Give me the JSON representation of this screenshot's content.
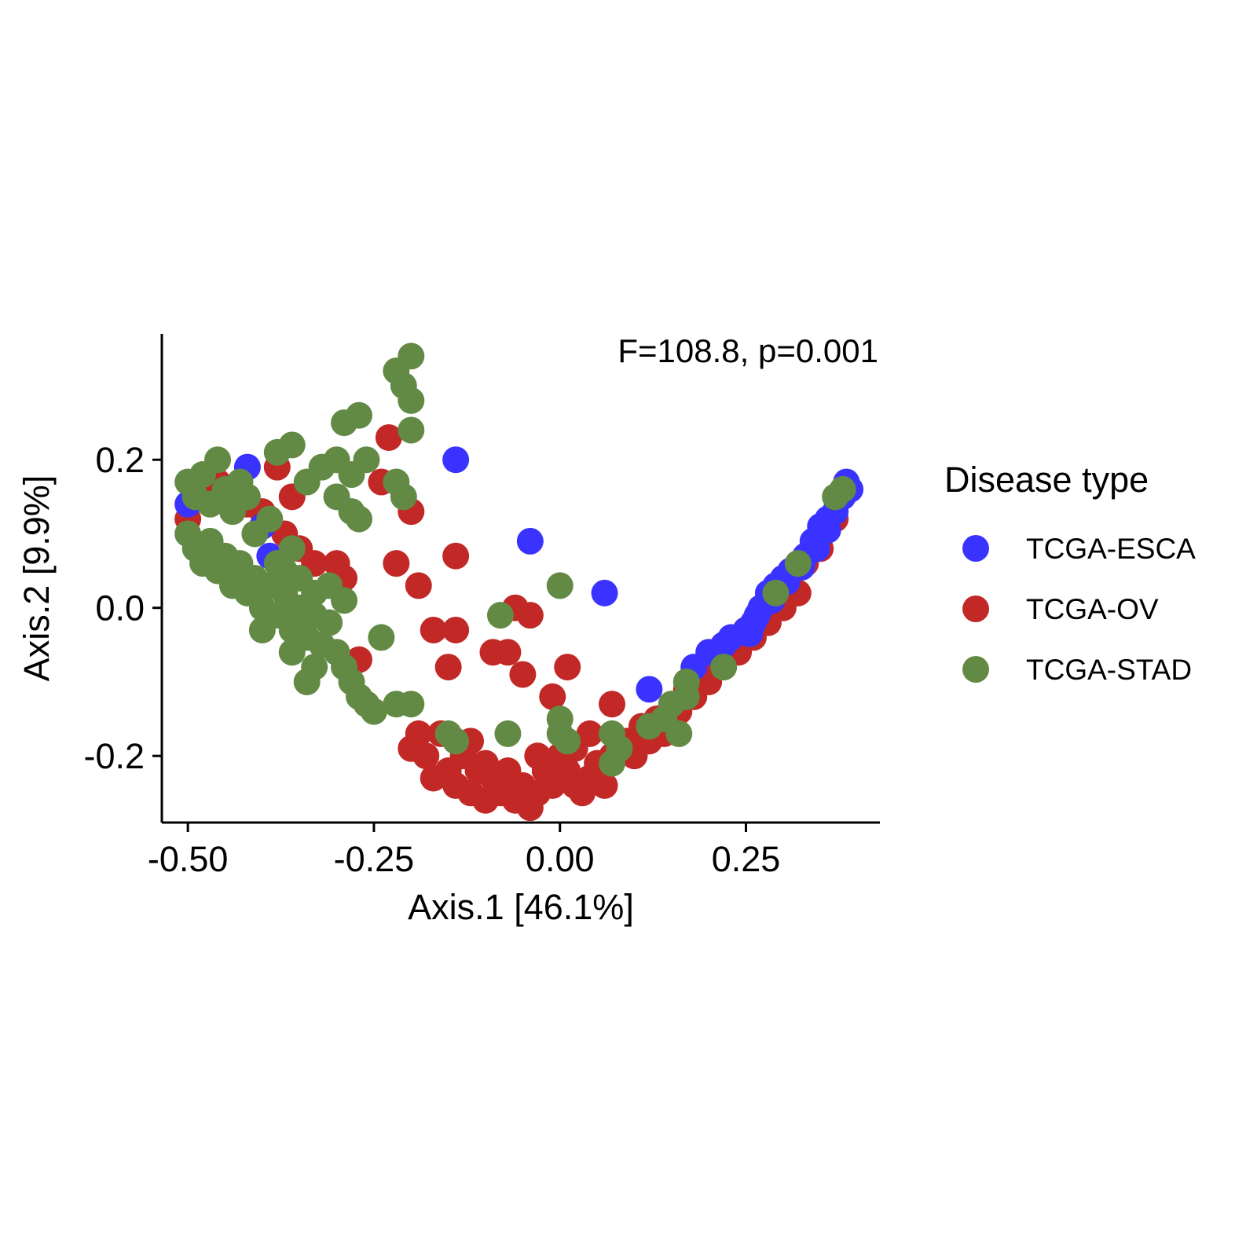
{
  "chart_data": {
    "type": "scatter",
    "xlabel": "Axis.1   [46.1%]",
    "ylabel": "Axis.2   [9.9%]",
    "annotation": "F=108.8, p=0.001",
    "xlim": [
      -0.535,
      0.43
    ],
    "ylim": [
      -0.29,
      0.37
    ],
    "x_ticks": [
      -0.5,
      -0.25,
      0.0,
      0.25
    ],
    "x_tick_labels": [
      "-0.50",
      "-0.25",
      "0.00",
      "0.25"
    ],
    "y_ticks": [
      -0.2,
      0.0,
      0.2
    ],
    "y_tick_labels": [
      "-0.2",
      "0.0",
      "0.2"
    ],
    "grid": false,
    "legend": {
      "title": "Disease type",
      "position": "right"
    },
    "series": [
      {
        "name": "TCGA-ESCA",
        "color": "#3a33ff",
        "points": [
          [
            -0.5,
            0.14
          ],
          [
            -0.42,
            0.19
          ],
          [
            -0.4,
            0.11
          ],
          [
            -0.39,
            0.07
          ],
          [
            -0.14,
            0.2
          ],
          [
            -0.04,
            0.09
          ],
          [
            0.06,
            0.02
          ],
          [
            0.12,
            -0.11
          ],
          [
            0.18,
            -0.08
          ],
          [
            0.2,
            -0.06
          ],
          [
            0.22,
            -0.05
          ],
          [
            0.23,
            -0.04
          ],
          [
            0.25,
            -0.03
          ],
          [
            0.26,
            -0.02
          ],
          [
            0.27,
            0.0
          ],
          [
            0.28,
            0.02
          ],
          [
            0.29,
            0.03
          ],
          [
            0.3,
            0.04
          ],
          [
            0.31,
            0.05
          ],
          [
            0.32,
            0.06
          ],
          [
            0.33,
            0.07
          ],
          [
            0.34,
            0.09
          ],
          [
            0.35,
            0.11
          ],
          [
            0.36,
            0.12
          ],
          [
            0.37,
            0.13
          ],
          [
            0.38,
            0.15
          ],
          [
            0.39,
            0.16
          ],
          [
            0.385,
            0.17
          ],
          [
            0.255,
            -0.035
          ],
          [
            0.265,
            -0.01
          ],
          [
            0.285,
            0.01
          ],
          [
            0.305,
            0.035
          ],
          [
            0.325,
            0.055
          ],
          [
            0.345,
            0.08
          ],
          [
            0.36,
            0.105
          ]
        ]
      },
      {
        "name": "TCGA-OV",
        "color": "#c22826",
        "points": [
          [
            -0.5,
            0.12
          ],
          [
            -0.48,
            0.15
          ],
          [
            -0.46,
            0.17
          ],
          [
            -0.44,
            0.16
          ],
          [
            -0.42,
            0.14
          ],
          [
            -0.4,
            0.13
          ],
          [
            -0.38,
            0.19
          ],
          [
            -0.36,
            0.15
          ],
          [
            -0.37,
            0.1
          ],
          [
            -0.35,
            0.08
          ],
          [
            -0.33,
            0.06
          ],
          [
            -0.3,
            0.06
          ],
          [
            -0.29,
            0.04
          ],
          [
            -0.27,
            -0.07
          ],
          [
            -0.24,
            0.17
          ],
          [
            -0.23,
            0.23
          ],
          [
            -0.2,
            0.13
          ],
          [
            -0.22,
            0.06
          ],
          [
            -0.19,
            0.03
          ],
          [
            -0.17,
            -0.03
          ],
          [
            -0.14,
            -0.03
          ],
          [
            -0.15,
            -0.08
          ],
          [
            -0.14,
            0.07
          ],
          [
            -0.09,
            -0.06
          ],
          [
            -0.07,
            -0.06
          ],
          [
            -0.05,
            -0.09
          ],
          [
            -0.06,
            0.0
          ],
          [
            -0.04,
            -0.01
          ],
          [
            -0.01,
            -0.12
          ],
          [
            0.01,
            -0.08
          ],
          [
            0.07,
            -0.13
          ],
          [
            -0.2,
            -0.19
          ],
          [
            -0.18,
            -0.2
          ],
          [
            -0.16,
            -0.17
          ],
          [
            -0.17,
            -0.23
          ],
          [
            -0.15,
            -0.22
          ],
          [
            -0.14,
            -0.24
          ],
          [
            -0.13,
            -0.2
          ],
          [
            -0.12,
            -0.25
          ],
          [
            -0.11,
            -0.22
          ],
          [
            -0.1,
            -0.26
          ],
          [
            -0.09,
            -0.23
          ],
          [
            -0.08,
            -0.25
          ],
          [
            -0.07,
            -0.22
          ],
          [
            -0.06,
            -0.26
          ],
          [
            -0.05,
            -0.24
          ],
          [
            -0.04,
            -0.27
          ],
          [
            -0.03,
            -0.25
          ],
          [
            -0.02,
            -0.22
          ],
          [
            -0.01,
            -0.24
          ],
          [
            0.0,
            -0.2
          ],
          [
            0.01,
            -0.22
          ],
          [
            0.02,
            -0.24
          ],
          [
            0.03,
            -0.25
          ],
          [
            0.04,
            -0.23
          ],
          [
            0.05,
            -0.21
          ],
          [
            0.06,
            -0.24
          ],
          [
            0.07,
            -0.2
          ],
          [
            0.08,
            -0.19
          ],
          [
            0.09,
            -0.18
          ],
          [
            0.1,
            -0.2
          ],
          [
            0.11,
            -0.16
          ],
          [
            0.12,
            -0.18
          ],
          [
            0.13,
            -0.15
          ],
          [
            0.14,
            -0.17
          ],
          [
            0.15,
            -0.13
          ],
          [
            0.16,
            -0.14
          ],
          [
            0.17,
            -0.11
          ],
          [
            0.18,
            -0.12
          ],
          [
            0.19,
            -0.09
          ],
          [
            0.2,
            -0.1
          ],
          [
            0.21,
            -0.07
          ],
          [
            0.22,
            -0.08
          ],
          [
            0.23,
            -0.05
          ],
          [
            0.24,
            -0.06
          ],
          [
            0.25,
            -0.03
          ],
          [
            0.26,
            -0.04
          ],
          [
            0.27,
            -0.01
          ],
          [
            0.28,
            -0.02
          ],
          [
            0.29,
            0.01
          ],
          [
            0.3,
            0.0
          ],
          [
            0.31,
            0.03
          ],
          [
            0.32,
            0.02
          ],
          [
            0.33,
            0.06
          ],
          [
            0.35,
            0.08
          ],
          [
            0.37,
            0.12
          ],
          [
            -0.19,
            -0.17
          ],
          [
            -0.12,
            -0.18
          ],
          [
            -0.1,
            -0.21
          ],
          [
            -0.03,
            -0.2
          ],
          [
            0.02,
            -0.19
          ],
          [
            0.04,
            -0.17
          ]
        ]
      },
      {
        "name": "TCGA-STAD",
        "color": "#638a44",
        "points": [
          [
            -0.2,
            0.34
          ],
          [
            -0.22,
            0.32
          ],
          [
            -0.21,
            0.3
          ],
          [
            -0.2,
            0.28
          ],
          [
            -0.2,
            0.24
          ],
          [
            -0.29,
            0.25
          ],
          [
            -0.27,
            0.26
          ],
          [
            -0.36,
            0.22
          ],
          [
            -0.38,
            0.21
          ],
          [
            -0.32,
            0.19
          ],
          [
            -0.3,
            0.2
          ],
          [
            -0.28,
            0.18
          ],
          [
            -0.26,
            0.2
          ],
          [
            -0.22,
            0.17
          ],
          [
            -0.21,
            0.15
          ],
          [
            -0.34,
            0.17
          ],
          [
            -0.3,
            0.15
          ],
          [
            -0.28,
            0.13
          ],
          [
            -0.27,
            0.12
          ],
          [
            -0.5,
            0.17
          ],
          [
            -0.49,
            0.15
          ],
          [
            -0.48,
            0.18
          ],
          [
            -0.47,
            0.14
          ],
          [
            -0.46,
            0.2
          ],
          [
            -0.45,
            0.16
          ],
          [
            -0.44,
            0.13
          ],
          [
            -0.43,
            0.17
          ],
          [
            -0.42,
            0.15
          ],
          [
            -0.5,
            0.1
          ],
          [
            -0.49,
            0.08
          ],
          [
            -0.48,
            0.06
          ],
          [
            -0.47,
            0.09
          ],
          [
            -0.46,
            0.05
          ],
          [
            -0.45,
            0.07
          ],
          [
            -0.44,
            0.03
          ],
          [
            -0.43,
            0.06
          ],
          [
            -0.42,
            0.02
          ],
          [
            -0.41,
            0.04
          ],
          [
            -0.4,
            0.0
          ],
          [
            -0.39,
            0.03
          ],
          [
            -0.38,
            -0.01
          ],
          [
            -0.37,
            0.02
          ],
          [
            -0.36,
            -0.03
          ],
          [
            -0.35,
            0.0
          ],
          [
            -0.34,
            -0.04
          ],
          [
            -0.33,
            -0.01
          ],
          [
            -0.32,
            -0.05
          ],
          [
            -0.31,
            -0.02
          ],
          [
            -0.3,
            -0.06
          ],
          [
            -0.29,
            -0.08
          ],
          [
            -0.28,
            -0.1
          ],
          [
            -0.27,
            -0.12
          ],
          [
            -0.26,
            -0.13
          ],
          [
            -0.25,
            -0.14
          ],
          [
            -0.34,
            -0.1
          ],
          [
            -0.33,
            -0.08
          ],
          [
            -0.36,
            -0.06
          ],
          [
            -0.4,
            -0.03
          ],
          [
            -0.38,
            0.06
          ],
          [
            -0.36,
            0.08
          ],
          [
            -0.35,
            0.04
          ],
          [
            -0.33,
            0.02
          ],
          [
            -0.31,
            0.03
          ],
          [
            -0.29,
            0.01
          ],
          [
            -0.41,
            0.1
          ],
          [
            -0.39,
            0.12
          ],
          [
            -0.37,
            0.05
          ],
          [
            -0.35,
            -0.02
          ],
          [
            -0.24,
            -0.04
          ],
          [
            -0.22,
            -0.13
          ],
          [
            -0.2,
            -0.13
          ],
          [
            -0.15,
            -0.17
          ],
          [
            -0.14,
            -0.18
          ],
          [
            -0.08,
            -0.01
          ],
          [
            -0.07,
            -0.17
          ],
          [
            0.0,
            0.03
          ],
          [
            0.0,
            -0.15
          ],
          [
            0.0,
            -0.17
          ],
          [
            0.01,
            -0.18
          ],
          [
            0.07,
            -0.17
          ],
          [
            0.07,
            -0.21
          ],
          [
            0.08,
            -0.19
          ],
          [
            0.12,
            -0.16
          ],
          [
            0.14,
            -0.15
          ],
          [
            0.15,
            -0.13
          ],
          [
            0.16,
            -0.17
          ],
          [
            0.17,
            -0.1
          ],
          [
            0.17,
            -0.12
          ],
          [
            0.22,
            -0.08
          ],
          [
            0.29,
            0.02
          ],
          [
            0.32,
            0.06
          ],
          [
            0.37,
            0.15
          ],
          [
            0.38,
            0.16
          ]
        ]
      }
    ]
  }
}
